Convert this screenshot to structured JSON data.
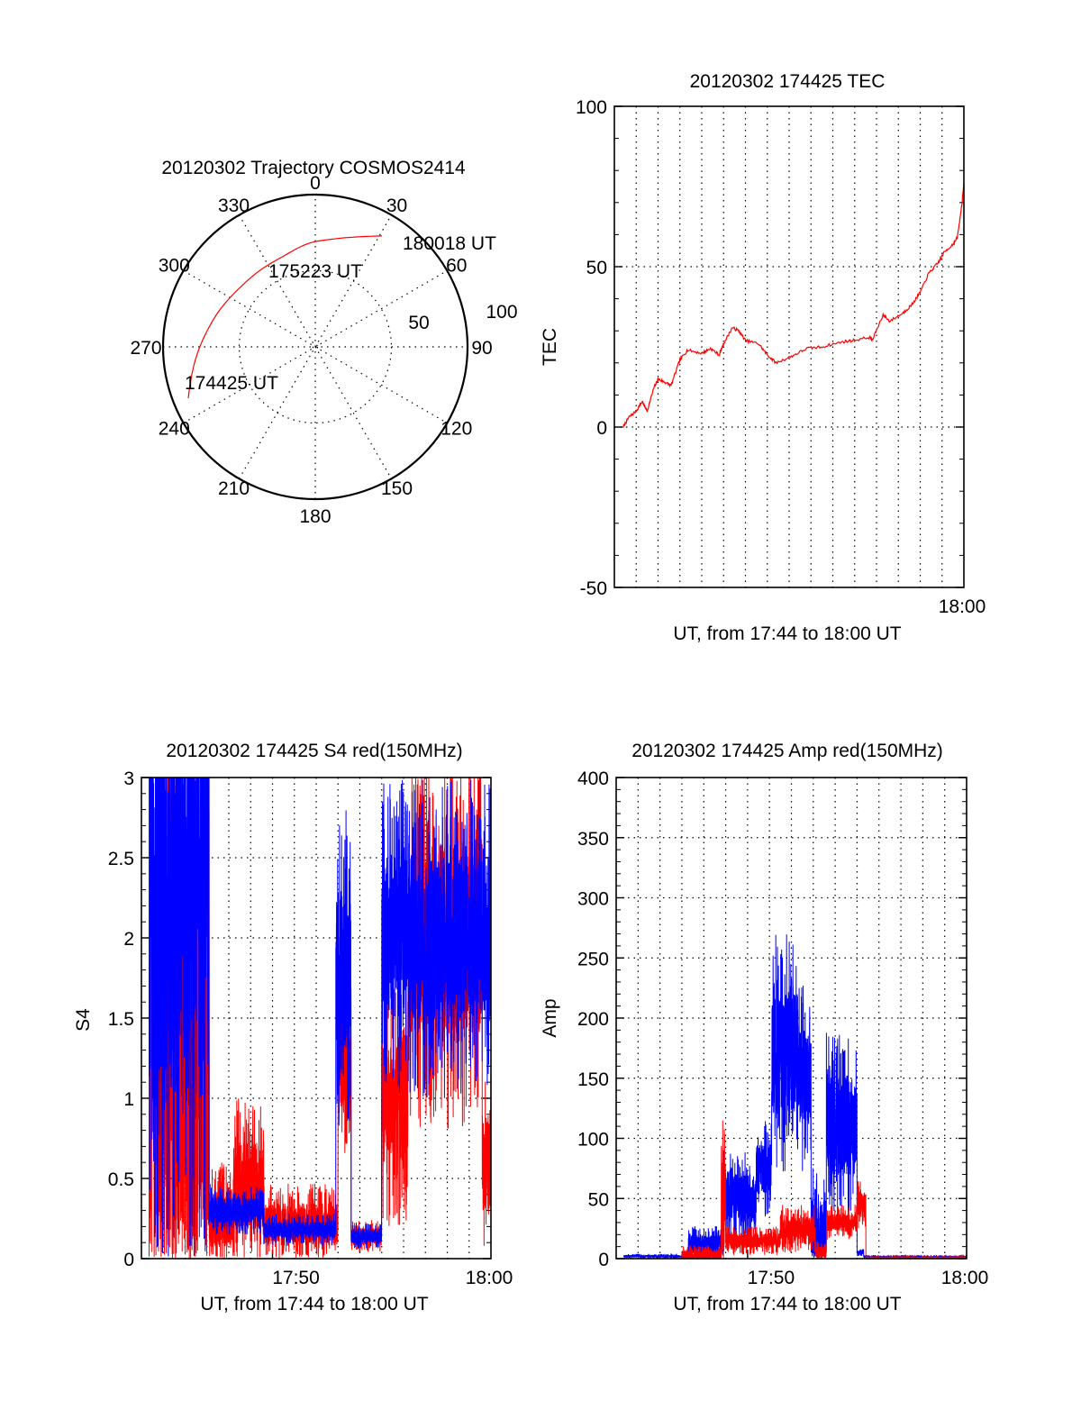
{
  "colors": {
    "red": "#ff0000",
    "blue": "#0000ff",
    "axes": "#000000"
  },
  "chart_data": [
    {
      "type": "polar",
      "name": "trajectory",
      "title": "20120302 Trajectory COSMOS2414",
      "azimuth_labels": [
        "0",
        "30",
        "60",
        "90",
        "120",
        "150",
        "180",
        "210",
        "240",
        "270",
        "300",
        "330"
      ],
      "radial_labels": [
        "50",
        "100"
      ],
      "radial_range": [
        0,
        100
      ],
      "track": {
        "color": "red",
        "points": [
          {
            "az": 248,
            "r": 90
          },
          {
            "az": 256,
            "r": 84
          },
          {
            "az": 266,
            "r": 78
          },
          {
            "az": 278,
            "r": 72
          },
          {
            "az": 292,
            "r": 67
          },
          {
            "az": 308,
            "r": 63
          },
          {
            "az": 324,
            "r": 62
          },
          {
            "az": 340,
            "r": 63
          },
          {
            "az": 356,
            "r": 68
          },
          {
            "az": 10,
            "r": 72
          },
          {
            "az": 22,
            "r": 78
          },
          {
            "az": 31,
            "r": 85
          }
        ],
        "labels": [
          {
            "text": "174425 UT",
            "az": 248,
            "r": 90
          },
          {
            "text": "175223 UT",
            "az": 330,
            "r": 62
          },
          {
            "text": "180018 UT",
            "az": 31,
            "r": 85
          }
        ]
      }
    },
    {
      "type": "line",
      "name": "tec",
      "title": "20120302 174425 TEC",
      "ylabel": "TEC",
      "xlabel": "UT, from 17:44 to 18:00 UT",
      "xlim_minutes_after_1744": [
        0,
        16
      ],
      "ylim": [
        -50,
        100
      ],
      "yticks": [
        "-50",
        "0",
        "50",
        "100"
      ],
      "ytick_values": [
        -50,
        0,
        50,
        100
      ],
      "xtick_labels": [
        {
          "label": "18:00",
          "minute": 16
        }
      ],
      "grid": true,
      "series": [
        {
          "name": "TEC",
          "color": "red",
          "x": [
            0.4,
            0.66,
            1.0,
            1.28,
            1.5,
            1.8,
            2.0,
            2.3,
            2.6,
            3.0,
            3.35,
            4.0,
            4.4,
            4.8,
            5.0,
            5.4,
            5.7,
            6.0,
            6.6,
            7.0,
            7.4,
            8.1,
            8.8,
            9.5,
            10.4,
            10.9,
            11.7,
            11.8,
            12.3,
            12.6,
            13.2,
            13.6,
            14.0,
            14.4,
            14.8,
            15.1,
            15.5,
            15.7,
            15.9,
            16.0
          ],
          "y": [
            0,
            3,
            5,
            8,
            5,
            12,
            15,
            14,
            13,
            21,
            24,
            23,
            24.5,
            22.5,
            26,
            31,
            30,
            27,
            26,
            22.5,
            20,
            22,
            24.5,
            25,
            26.5,
            27,
            28,
            27,
            35,
            33,
            35.5,
            38,
            42,
            48,
            51,
            54.5,
            57,
            59,
            69,
            76
          ]
        }
      ]
    },
    {
      "type": "line",
      "name": "s4",
      "title": "20120302 174425 S4 red(150MHz)",
      "ylabel": "S4",
      "xlabel": "UT, from 17:44 to 18:00 UT",
      "xlim_minutes_after_1744": [
        0,
        16
      ],
      "ylim": [
        0,
        3
      ],
      "yticks": [
        "0",
        "0.5",
        "1",
        "1.5",
        "2",
        "2.5",
        "3"
      ],
      "ytick_values": [
        0,
        0.5,
        1,
        1.5,
        2,
        2.5,
        3
      ],
      "xtick_labels": [
        {
          "label": "17:50",
          "minute": 6
        },
        {
          "label": "18:00",
          "minute": 16
        }
      ],
      "grid": true,
      "series": [
        {
          "name": "red",
          "color": "red",
          "segments": [
            {
              "from": 0.35,
              "to": 3.1,
              "base": 1.5,
              "noise": 3.0
            },
            {
              "from": 3.1,
              "to": 4.2,
              "base": 0.25,
              "noise": 0.35
            },
            {
              "from": 4.2,
              "to": 5.6,
              "base": 0.45,
              "noise": 0.55
            },
            {
              "from": 5.6,
              "to": 9.0,
              "base": 0.22,
              "noise": 0.25
            },
            {
              "from": 9.0,
              "to": 9.6,
              "base": 1.2,
              "noise": 0.6
            },
            {
              "from": 9.6,
              "to": 11.0,
              "base": 0.14,
              "noise": 0.1
            },
            {
              "from": 11.0,
              "to": 12.2,
              "base": 1.0,
              "noise": 0.8
            },
            {
              "from": 12.2,
              "to": 15.6,
              "base": 2.0,
              "noise": 1.2
            },
            {
              "from": 15.6,
              "to": 16.0,
              "base": 0.6,
              "noise": 0.6
            }
          ]
        },
        {
          "name": "blue",
          "color": "blue",
          "segments": [
            {
              "from": 0.35,
              "to": 3.1,
              "base": 2.2,
              "noise": 2.5
            },
            {
              "from": 3.1,
              "to": 5.6,
              "base": 0.3,
              "noise": 0.15
            },
            {
              "from": 5.6,
              "to": 8.9,
              "base": 0.18,
              "noise": 0.1
            },
            {
              "from": 8.9,
              "to": 9.6,
              "base": 1.8,
              "noise": 1.0
            },
            {
              "from": 9.6,
              "to": 11.0,
              "base": 0.14,
              "noise": 0.08
            },
            {
              "from": 11.0,
              "to": 16.0,
              "base": 2.0,
              "noise": 1.0
            }
          ]
        }
      ]
    },
    {
      "type": "line",
      "name": "amp",
      "title": "20120302 174425 Amp red(150MHz)",
      "ylabel": "Amp",
      "xlabel": "UT, from 17:44 to 18:00 UT",
      "xlim_minutes_after_1744": [
        0,
        16
      ],
      "ylim": [
        0,
        400
      ],
      "yticks": [
        "0",
        "50",
        "100",
        "150",
        "200",
        "250",
        "300",
        "350",
        "400"
      ],
      "ytick_values": [
        0,
        50,
        100,
        150,
        200,
        250,
        300,
        350,
        400
      ],
      "xtick_labels": [
        {
          "label": "17:50",
          "minute": 6
        },
        {
          "label": "18:00",
          "minute": 16
        }
      ],
      "grid": true,
      "series": [
        {
          "name": "blue",
          "color": "blue",
          "segments": [
            {
              "from": 0.35,
              "to": 3.3,
              "base": 2,
              "noise": 2
            },
            {
              "from": 3.3,
              "to": 4.9,
              "base": 12,
              "noise": 15
            },
            {
              "from": 4.9,
              "to": 6.4,
              "base": 50,
              "noise": 40
            },
            {
              "from": 6.4,
              "to": 7.1,
              "base": 75,
              "noise": 40
            },
            {
              "from": 7.1,
              "to": 8.3,
              "base": 170,
              "noise": 100
            },
            {
              "from": 8.3,
              "to": 8.9,
              "base": 150,
              "noise": 80
            },
            {
              "from": 8.9,
              "to": 9.6,
              "base": 20,
              "noise": 60
            },
            {
              "from": 9.6,
              "to": 11.0,
              "base": 110,
              "noise": 80
            },
            {
              "from": 11.0,
              "to": 11.3,
              "base": 5,
              "noise": 3
            },
            {
              "from": 11.3,
              "to": 16.0,
              "base": 1.5,
              "noise": 1.5
            }
          ]
        },
        {
          "name": "red",
          "color": "red",
          "segments": [
            {
              "from": 3.0,
              "to": 4.8,
              "base": 3,
              "noise": 8
            },
            {
              "from": 4.8,
              "to": 5.0,
              "base": 40,
              "noise": 80
            },
            {
              "from": 5.0,
              "to": 7.5,
              "base": 15,
              "noise": 12
            },
            {
              "from": 7.5,
              "to": 9.1,
              "base": 25,
              "noise": 20
            },
            {
              "from": 9.1,
              "to": 9.6,
              "base": 5,
              "noise": 10
            },
            {
              "from": 9.6,
              "to": 11.0,
              "base": 30,
              "noise": 15
            },
            {
              "from": 11.0,
              "to": 11.4,
              "base": 45,
              "noise": 20
            },
            {
              "from": 11.4,
              "to": 16.0,
              "base": 1,
              "noise": 1
            }
          ]
        }
      ]
    }
  ]
}
